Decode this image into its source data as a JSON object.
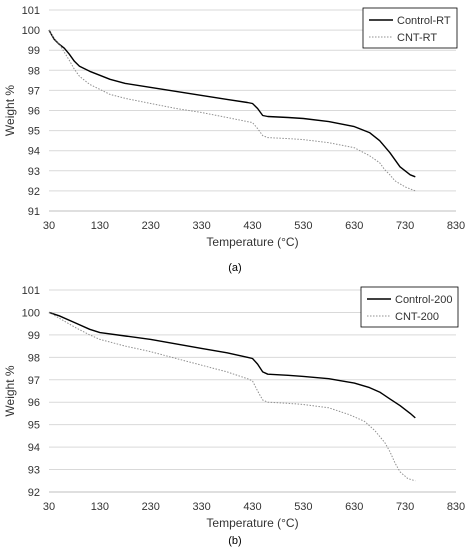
{
  "chart_data": [
    {
      "type": "line",
      "panel_label": "(a)",
      "xlabel": "Temperature (°C)",
      "ylabel": "Weight %",
      "xlim": [
        30,
        830
      ],
      "ylim": [
        91,
        101
      ],
      "x_ticks": [
        30,
        130,
        230,
        330,
        430,
        530,
        630,
        730,
        830
      ],
      "y_ticks": [
        91,
        92,
        93,
        94,
        95,
        96,
        97,
        98,
        99,
        100,
        101
      ],
      "grid": "horizontal",
      "legend_position": "top-right",
      "series": [
        {
          "name": "Control-RT",
          "color": "#000000",
          "line_style": "solid",
          "points": [
            [
              30,
              100.0
            ],
            [
              40,
              99.55
            ],
            [
              50,
              99.3
            ],
            [
              60,
              99.1
            ],
            [
              70,
              98.8
            ],
            [
              80,
              98.45
            ],
            [
              90,
              98.2
            ],
            [
              110,
              97.95
            ],
            [
              130,
              97.75
            ],
            [
              150,
              97.55
            ],
            [
              180,
              97.35
            ],
            [
              230,
              97.15
            ],
            [
              280,
              96.95
            ],
            [
              330,
              96.75
            ],
            [
              380,
              96.55
            ],
            [
              420,
              96.4
            ],
            [
              430,
              96.35
            ],
            [
              440,
              96.1
            ],
            [
              450,
              95.75
            ],
            [
              460,
              95.7
            ],
            [
              500,
              95.65
            ],
            [
              530,
              95.6
            ],
            [
              580,
              95.45
            ],
            [
              630,
              95.2
            ],
            [
              660,
              94.9
            ],
            [
              680,
              94.5
            ],
            [
              700,
              93.9
            ],
            [
              720,
              93.2
            ],
            [
              740,
              92.8
            ],
            [
              750,
              92.7
            ]
          ]
        },
        {
          "name": "CNT-RT",
          "color": "#909090",
          "line_style": "dotted",
          "points": [
            [
              30,
              100.0
            ],
            [
              40,
              99.6
            ],
            [
              50,
              99.3
            ],
            [
              60,
              98.9
            ],
            [
              70,
              98.5
            ],
            [
              80,
              98.05
            ],
            [
              90,
              97.7
            ],
            [
              110,
              97.3
            ],
            [
              130,
              97.05
            ],
            [
              150,
              96.8
            ],
            [
              180,
              96.6
            ],
            [
              230,
              96.35
            ],
            [
              280,
              96.1
            ],
            [
              330,
              95.9
            ],
            [
              380,
              95.65
            ],
            [
              420,
              95.45
            ],
            [
              430,
              95.4
            ],
            [
              440,
              95.1
            ],
            [
              450,
              94.75
            ],
            [
              460,
              94.65
            ],
            [
              500,
              94.6
            ],
            [
              530,
              94.55
            ],
            [
              580,
              94.4
            ],
            [
              630,
              94.15
            ],
            [
              660,
              93.75
            ],
            [
              680,
              93.4
            ],
            [
              690,
              93.05
            ],
            [
              700,
              92.8
            ],
            [
              710,
              92.5
            ],
            [
              730,
              92.2
            ],
            [
              750,
              92.0
            ]
          ]
        }
      ]
    },
    {
      "type": "line",
      "panel_label": "(b)",
      "xlabel": "Temperature (°C)",
      "ylabel": "Weight %",
      "xlim": [
        30,
        830
      ],
      "ylim": [
        92,
        101
      ],
      "x_ticks": [
        30,
        130,
        230,
        330,
        430,
        530,
        630,
        730,
        830
      ],
      "y_ticks": [
        92,
        93,
        94,
        95,
        96,
        97,
        98,
        99,
        100,
        101
      ],
      "grid": "horizontal",
      "legend_position": "top-right",
      "series": [
        {
          "name": "Control-200",
          "color": "#000000",
          "line_style": "solid",
          "points": [
            [
              30,
              100.0
            ],
            [
              50,
              99.85
            ],
            [
              80,
              99.55
            ],
            [
              110,
              99.25
            ],
            [
              130,
              99.1
            ],
            [
              180,
              98.95
            ],
            [
              230,
              98.8
            ],
            [
              280,
              98.6
            ],
            [
              330,
              98.4
            ],
            [
              380,
              98.2
            ],
            [
              420,
              98.0
            ],
            [
              430,
              97.95
            ],
            [
              440,
              97.7
            ],
            [
              450,
              97.35
            ],
            [
              460,
              97.25
            ],
            [
              500,
              97.2
            ],
            [
              530,
              97.15
            ],
            [
              580,
              97.05
            ],
            [
              630,
              96.85
            ],
            [
              660,
              96.65
            ],
            [
              680,
              96.45
            ],
            [
              700,
              96.15
            ],
            [
              720,
              95.85
            ],
            [
              740,
              95.5
            ],
            [
              750,
              95.3
            ]
          ]
        },
        {
          "name": "CNT-200",
          "color": "#909090",
          "line_style": "dotted",
          "points": [
            [
              30,
              100.0
            ],
            [
              50,
              99.75
            ],
            [
              80,
              99.35
            ],
            [
              110,
              99.0
            ],
            [
              130,
              98.8
            ],
            [
              180,
              98.5
            ],
            [
              230,
              98.25
            ],
            [
              280,
              97.95
            ],
            [
              330,
              97.65
            ],
            [
              380,
              97.35
            ],
            [
              420,
              97.05
            ],
            [
              430,
              96.95
            ],
            [
              440,
              96.5
            ],
            [
              450,
              96.1
            ],
            [
              460,
              96.0
            ],
            [
              500,
              95.95
            ],
            [
              530,
              95.9
            ],
            [
              580,
              95.75
            ],
            [
              620,
              95.45
            ],
            [
              650,
              95.15
            ],
            [
              670,
              94.75
            ],
            [
              690,
              94.2
            ],
            [
              700,
              93.8
            ],
            [
              710,
              93.3
            ],
            [
              720,
              92.9
            ],
            [
              735,
              92.6
            ],
            [
              750,
              92.5
            ]
          ]
        }
      ]
    }
  ]
}
